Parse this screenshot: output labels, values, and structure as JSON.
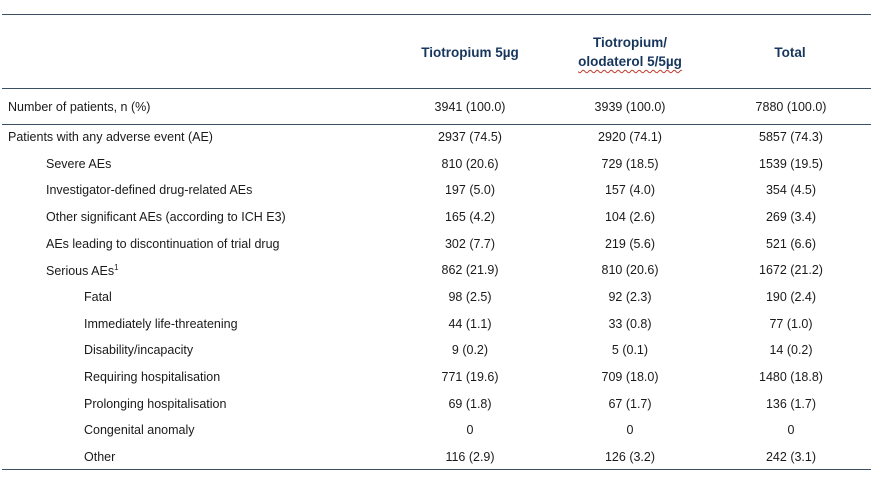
{
  "headers": {
    "col1": "Tiotropium 5µg",
    "col2_line1": "Tiotropium/",
    "col2_line2": "olodaterol 5/5µg",
    "col3": "Total"
  },
  "rows": [
    {
      "label": "Number of patients, n (%)",
      "v1": "3941 (100.0)",
      "v2": "3939 (100.0)",
      "v3": "7880 (100.0)"
    },
    {
      "label": "Patients with any adverse event (AE)",
      "v1": "2937 (74.5)",
      "v2": "2920 (74.1)",
      "v3": "5857 (74.3)"
    },
    {
      "label": "Severe AEs",
      "v1": "810 (20.6)",
      "v2": "729 (18.5)",
      "v3": "1539 (19.5)"
    },
    {
      "label": "Investigator-defined  drug-related  AEs",
      "v1": "197 (5.0)",
      "v2": "157 (4.0)",
      "v3": "354 (4.5)"
    },
    {
      "label": "Other significant AEs (according to ICH E3)",
      "v1": "165 (4.2)",
      "v2": "104 (2.6)",
      "v3": "269 (3.4)"
    },
    {
      "label": "AEs leading to discontinuation of trial drug",
      "v1": "302 (7.7)",
      "v2": "219 (5.6)",
      "v3": "521 (6.6)"
    },
    {
      "label": "Serious AEs",
      "sup": "1",
      "v1": "862 (21.9)",
      "v2": "810 (20.6)",
      "v3": "1672 (21.2)"
    },
    {
      "label": "Fatal",
      "v1": "98 (2.5)",
      "v2": "92 (2.3)",
      "v3": "190 (2.4)"
    },
    {
      "label": "Immediately life-threatening",
      "v1": "44 (1.1)",
      "v2": "33 (0.8)",
      "v3": "77 (1.0)"
    },
    {
      "label": "Disability/incapacity",
      "v1": "9 (0.2)",
      "v2": "5 (0.1)",
      "v3": "14 (0.2)"
    },
    {
      "label": "Requiring  hospitalisation",
      "v1": "771 (19.6)",
      "v2": "709 (18.0)",
      "v3": "1480 (18.8)"
    },
    {
      "label": "Prolonging  hospitalisation",
      "v1": "69 (1.8)",
      "v2": "67 (1.7)",
      "v3": "136 (1.7)"
    },
    {
      "label": "Congenital anomaly",
      "v1": "0",
      "v2": "0",
      "v3": "0"
    },
    {
      "label": "Other",
      "v1": "116 (2.9)",
      "v2": "126 (3.2)",
      "v3": "242 (3.1)"
    }
  ],
  "colors": {
    "header_text": "#17365d",
    "rule": "#3d4f63",
    "spell_underline": "#c0392b"
  }
}
